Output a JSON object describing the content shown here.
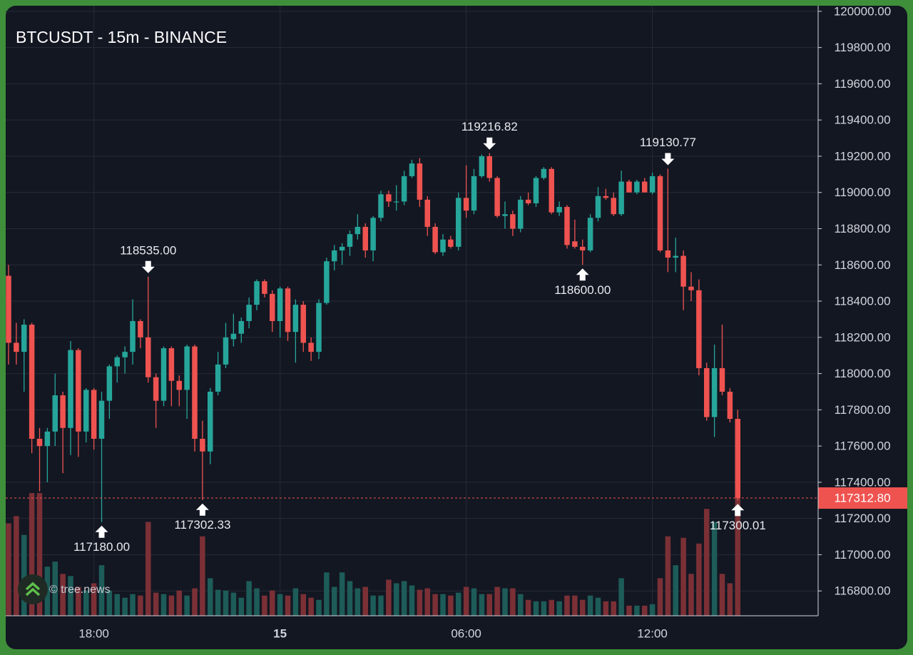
{
  "chart_data": {
    "type": "candlestick",
    "title": "BTCUSDT - 15m - BINANCE",
    "watermark": "© tree.news",
    "categories": [
      null,
      null,
      null,
      null,
      null,
      null,
      null,
      null,
      null,
      null,
      null,
      "18:00",
      null,
      null,
      null,
      null,
      null,
      null,
      null,
      null,
      null,
      null,
      null,
      null,
      null,
      null,
      null,
      null,
      null,
      null,
      null,
      null,
      null,
      null,
      null,
      "15",
      null,
      null,
      null,
      null,
      null,
      null,
      null,
      null,
      null,
      null,
      null,
      null,
      null,
      null,
      null,
      null,
      null,
      null,
      null,
      null,
      null,
      null,
      null,
      "06:00",
      null,
      null,
      null,
      null,
      null,
      null,
      null,
      null,
      null,
      null,
      null,
      null,
      null,
      null,
      null,
      null,
      null,
      null,
      null,
      null,
      null,
      null,
      null,
      "12:00",
      null,
      null,
      null,
      null,
      null,
      null,
      null,
      null,
      null,
      null,
      null
    ],
    "open": [
      118540,
      118170,
      118120,
      118270,
      117640,
      117600,
      117680,
      117880,
      117700,
      118130,
      117680,
      117910,
      117640,
      117850,
      118040,
      118090,
      118120,
      118290,
      118200,
      117980,
      117850,
      118140,
      117960,
      117910,
      118150,
      117640,
      117570,
      117900,
      118050,
      118190,
      118220,
      118290,
      118380,
      118510,
      118440,
      118290,
      118470,
      118230,
      118380,
      118170,
      118120,
      118390,
      118620,
      118680,
      118700,
      118770,
      118810,
      118680,
      118860,
      118990,
      118950,
      118950,
      119090,
      119160,
      118960,
      118810,
      118670,
      118740,
      118700,
      118970,
      118900,
      119090,
      119200,
      119080,
      118870,
      118880,
      118800,
      118960,
      118940,
      119080,
      119130,
      118890,
      118920,
      118730,
      118700,
      118680,
      118860,
      118980,
      118970,
      118880,
      119060,
      119000,
      119060,
      119000,
      119090,
      118680,
      118640,
      118650,
      118480,
      118460,
      118030,
      117760,
      118030,
      117900,
      117750
    ],
    "high": [
      118600,
      118280,
      118300,
      118280,
      117700,
      117700,
      118000,
      117900,
      118180,
      118140,
      117920,
      117920,
      117900,
      118050,
      118100,
      118150,
      118410,
      118300,
      118535,
      118000,
      118150,
      118150,
      117990,
      118160,
      118160,
      117740,
      117920,
      118120,
      118280,
      118330,
      118310,
      118420,
      118520,
      118520,
      118460,
      118480,
      118480,
      118410,
      118400,
      118200,
      118410,
      118640,
      118710,
      118720,
      118790,
      118880,
      118830,
      118870,
      119010,
      119010,
      119040,
      119120,
      119180,
      119190,
      118980,
      118830,
      118770,
      118760,
      119000,
      119150,
      119130,
      119210,
      119216.82,
      119090,
      118950,
      118900,
      118980,
      119000,
      119090,
      119140,
      119140,
      118950,
      118930,
      118850,
      118740,
      118880,
      119030,
      119020,
      119000,
      119120,
      119070,
      119070,
      119080,
      119110,
      119100,
      119130.77,
      118750,
      118680,
      118560,
      118520,
      118060,
      118160,
      118270,
      117920,
      117800
    ],
    "low": [
      118050,
      118050,
      117900,
      117560,
      117350,
      117400,
      117600,
      117450,
      117550,
      117540,
      117620,
      117580,
      117180,
      117750,
      117950,
      118000,
      118050,
      118140,
      117950,
      117700,
      117820,
      117820,
      117820,
      117750,
      117570,
      117302.33,
      117500,
      117880,
      118030,
      118150,
      118170,
      118250,
      118350,
      118420,
      118230,
      118200,
      118180,
      118060,
      118120,
      118070,
      118080,
      118380,
      118570,
      118600,
      118650,
      118740,
      118640,
      118620,
      118840,
      118920,
      118900,
      118930,
      119080,
      118920,
      118760,
      118660,
      118650,
      118690,
      118680,
      118860,
      118880,
      119080,
      119060,
      118860,
      118800,
      118760,
      118780,
      118930,
      118920,
      119070,
      118880,
      118870,
      118690,
      118690,
      118600,
      118670,
      118840,
      118960,
      118870,
      118870,
      119000,
      118990,
      119000,
      118990,
      118670,
      118560,
      118560,
      118350,
      118400,
      117990,
      117740,
      117650,
      117880,
      117730,
      117300.01
    ],
    "close": [
      118170,
      118120,
      118270,
      117640,
      117600,
      117680,
      117880,
      117700,
      118130,
      117680,
      117910,
      117640,
      117850,
      118040,
      118090,
      118120,
      118290,
      118200,
      117980,
      117850,
      118140,
      117960,
      117910,
      118150,
      117640,
      117570,
      117900,
      118050,
      118200,
      118220,
      118290,
      118380,
      118510,
      118440,
      118290,
      118470,
      118230,
      118380,
      118170,
      118120,
      118390,
      118620,
      118680,
      118700,
      118770,
      118810,
      118680,
      118860,
      118990,
      118950,
      118950,
      119090,
      119160,
      118960,
      118810,
      118670,
      118740,
      118700,
      118970,
      118900,
      119090,
      119200,
      119080,
      118870,
      118880,
      118800,
      118960,
      118940,
      119080,
      119130,
      118890,
      118920,
      118710,
      118700,
      118680,
      118860,
      118980,
      118970,
      118880,
      119060,
      119000,
      119060,
      119000,
      119090,
      118680,
      118640,
      118650,
      118480,
      118460,
      118030,
      117760,
      118030,
      117900,
      117750,
      117312.8
    ],
    "volume": [
      128,
      138,
      112,
      170,
      170,
      68,
      75,
      58,
      55,
      40,
      35,
      45,
      70,
      35,
      30,
      25,
      30,
      28,
      130,
      32,
      30,
      28,
      35,
      28,
      38,
      110,
      52,
      36,
      35,
      32,
      25,
      48,
      38,
      28,
      35,
      30,
      28,
      38,
      30,
      25,
      22,
      60,
      40,
      60,
      48,
      38,
      40,
      28,
      28,
      50,
      45,
      48,
      42,
      36,
      38,
      30,
      30,
      28,
      32,
      40,
      38,
      30,
      30,
      40,
      38,
      38,
      30,
      22,
      20,
      20,
      22,
      20,
      28,
      28,
      22,
      28,
      25,
      20,
      20,
      52,
      14,
      14,
      14,
      16,
      52,
      110,
      70,
      108,
      58,
      100,
      148,
      130,
      58,
      45,
      170
    ],
    "up_color": "#26a69a",
    "down_color": "#ef5350",
    "up_volume_color": "#1d5c58",
    "down_volume_color": "#7b3036",
    "ylim": [
      116663,
      120031
    ],
    "yticks": [
      {
        "value": 116800,
        "label": "116800.00"
      },
      {
        "value": 117000,
        "label": "117000.00"
      },
      {
        "value": 117200,
        "label": "117200.00"
      },
      {
        "value": 117400,
        "label": "117400.00"
      },
      {
        "value": 117600,
        "label": "117600.00"
      },
      {
        "value": 117800,
        "label": "117800.00"
      },
      {
        "value": 118000,
        "label": "118000.00"
      },
      {
        "value": 118200,
        "label": "118200.00"
      },
      {
        "value": 118400,
        "label": "118400.00"
      },
      {
        "value": 118600,
        "label": "118600.00"
      },
      {
        "value": 118800,
        "label": "118800.00"
      },
      {
        "value": 119000,
        "label": "119000.00"
      },
      {
        "value": 119200,
        "label": "119200.00"
      },
      {
        "value": 119400,
        "label": "119400.00"
      },
      {
        "value": 119600,
        "label": "119600.00"
      },
      {
        "value": 119800,
        "label": "119800.00"
      },
      {
        "value": 120000,
        "label": "120000.00"
      }
    ],
    "grid": true,
    "last_price": {
      "value": 117312.8,
      "label": "117312.80",
      "color": "#ef5350"
    },
    "annotations": [
      {
        "candle": 18,
        "side": "high",
        "value": 118535,
        "label": "118535.00"
      },
      {
        "candle": 12,
        "side": "low",
        "value": 117180,
        "label": "117180.00"
      },
      {
        "candle": 25,
        "side": "low",
        "value": 117302.33,
        "label": "117302.33"
      },
      {
        "candle": 62,
        "side": "high",
        "value": 119216.82,
        "label": "119216.82"
      },
      {
        "candle": 74,
        "side": "low",
        "value": 118600,
        "label": "118600.00"
      },
      {
        "candle": 85,
        "side": "high",
        "value": 119130.77,
        "label": "119130.77"
      },
      {
        "candle": 94,
        "side": "low",
        "value": 117300.01,
        "label": "117300.01"
      }
    ]
  }
}
